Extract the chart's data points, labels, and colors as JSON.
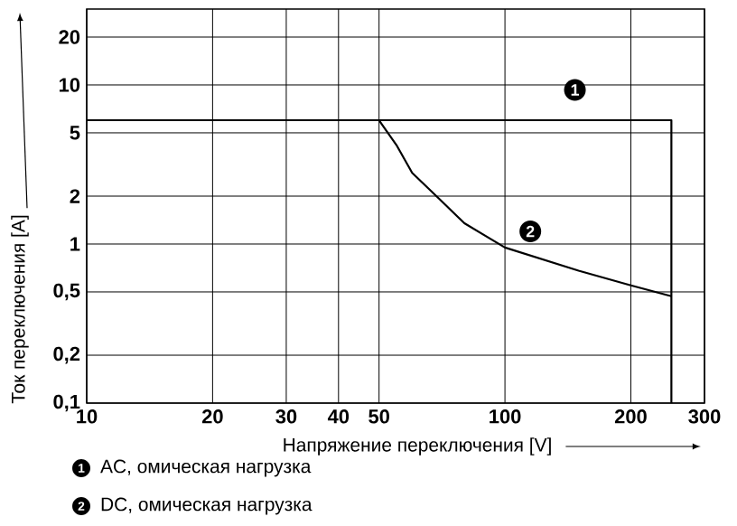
{
  "chart_data": {
    "type": "line",
    "xlabel": "Напряжение переключения [V]",
    "ylabel": "Ток переключения [A]",
    "log": "xy",
    "xlim": [
      10,
      300
    ],
    "ylim": [
      0.1,
      30
    ],
    "xticks": [
      10,
      20,
      30,
      40,
      50,
      100,
      200,
      300
    ],
    "yticks": [
      {
        "value": 0.1,
        "label": "0,1"
      },
      {
        "value": 0.2,
        "label": "0,2"
      },
      {
        "value": 0.5,
        "label": "0,5"
      },
      1,
      2,
      5,
      10,
      20
    ],
    "grid": true,
    "legend": "bottom",
    "line_style": "solid",
    "marker": "none",
    "series": [
      {
        "name": "AC, омическая нагрузка",
        "color": "#000000",
        "x": [
          10,
          250,
          250
        ],
        "values": [
          6,
          6,
          0.1
        ]
      },
      {
        "name": "DC, омическая нагрузка",
        "color": "#000000",
        "x": [
          50,
          55,
          60,
          70,
          80,
          100,
          150,
          200,
          250
        ],
        "values": [
          6,
          4.2,
          2.8,
          1.9,
          1.35,
          0.95,
          0.68,
          0.55,
          0.47
        ]
      }
    ],
    "annotations": [
      {
        "text": "1",
        "x": 147,
        "y": 9.3
      },
      {
        "text": "2",
        "x": 115,
        "y": 1.2
      }
    ]
  }
}
